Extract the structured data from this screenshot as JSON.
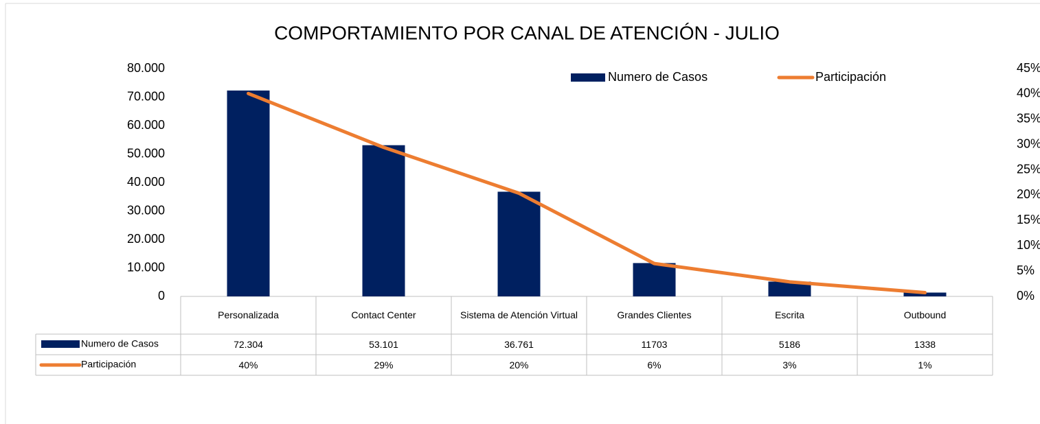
{
  "chart_data": {
    "type": "bar_line_table",
    "title": "COMPORTAMIENTO POR CANAL DE ATENCIÓN - JULIO",
    "categories": [
      "Personalizada",
      "Contact Center",
      "Sistema de Atención Virtual",
      "Grandes Clientes",
      "Escrita",
      "Outbound"
    ],
    "series": [
      {
        "name": "Numero de Casos",
        "type": "bar",
        "color": "#002060",
        "values": [
          72304,
          53101,
          36761,
          11703,
          5186,
          1338
        ],
        "value_labels": [
          "72.304",
          "53.101",
          "36.761",
          "11703",
          "5186",
          "1338"
        ]
      },
      {
        "name": "Participación",
        "type": "line",
        "axis": "y2",
        "color": "#ED7D31",
        "values": [
          40.08,
          29.44,
          20.38,
          6.49,
          2.87,
          0.74
        ],
        "value_labels": [
          "40%",
          "29%",
          "20%",
          "6%",
          "3%",
          "1%"
        ]
      }
    ],
    "ylim": [
      0,
      80000
    ],
    "yticks": [
      0,
      {
        "value": 10000,
        "label": "10.000"
      },
      {
        "value": 20000,
        "label": "20.000"
      },
      {
        "value": 30000,
        "label": "30.000"
      },
      {
        "value": 40000,
        "label": "40.000"
      },
      {
        "value": 50000,
        "label": "50.000"
      },
      {
        "value": 60000,
        "label": "60.000"
      },
      {
        "value": 70000,
        "label": "70.000"
      },
      {
        "value": 80000,
        "label": "80.000"
      }
    ],
    "y2lim": [
      0,
      45
    ],
    "y2ticks": [
      {
        "value": 0,
        "label": "0%"
      },
      {
        "value": 5,
        "label": "5%"
      },
      {
        "value": 10,
        "label": "10%"
      },
      {
        "value": 15,
        "label": "15%"
      },
      {
        "value": 20,
        "label": "20%"
      },
      {
        "value": 25,
        "label": "25%"
      },
      {
        "value": 30,
        "label": "30%"
      },
      {
        "value": 35,
        "label": "35%"
      },
      {
        "value": 40,
        "label": "40%"
      },
      {
        "value": 45,
        "label": "45%"
      }
    ],
    "legend": "top-right"
  }
}
